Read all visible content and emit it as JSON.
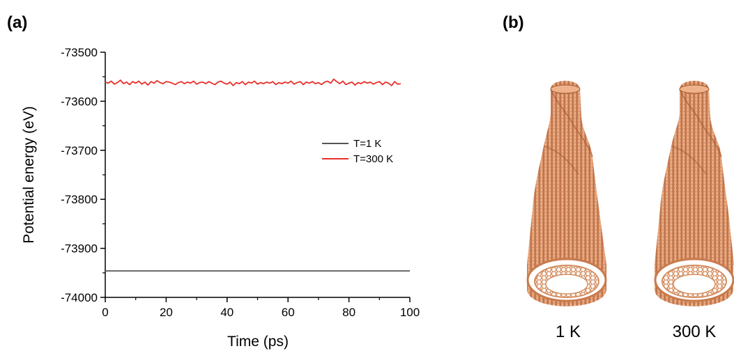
{
  "panels": {
    "a": "(a)",
    "b": "(b)"
  },
  "chart_data": {
    "type": "line",
    "xlabel": "Time (ps)",
    "ylabel": "Potential energy (eV)",
    "xlim": [
      0,
      100
    ],
    "ylim": [
      -74000,
      -73500
    ],
    "xticks": [
      0,
      20,
      40,
      60,
      80,
      100
    ],
    "yticks": [
      -74000,
      -73900,
      -73800,
      -73700,
      -73600,
      -73500
    ],
    "xtick_labels": [
      "0",
      "20",
      "40",
      "60",
      "80",
      "100"
    ],
    "ytick_labels": [
      "-74000",
      "-73900",
      "-73800",
      "-73700",
      "-73600",
      "-73500"
    ],
    "legend_position": "right",
    "grid": false,
    "series": [
      {
        "name": "T=1 K",
        "color": "#555555",
        "x": [
          0,
          100
        ],
        "y": [
          -73946,
          -73946
        ]
      },
      {
        "name": "T=300 K",
        "color": "#e8302a",
        "x": [
          0,
          1,
          2,
          3,
          4,
          5,
          6,
          7,
          8,
          9,
          10,
          11,
          12,
          13,
          14,
          15,
          16,
          17,
          18,
          19,
          20,
          21,
          22,
          23,
          24,
          25,
          26,
          27,
          28,
          29,
          30,
          31,
          32,
          33,
          34,
          35,
          36,
          37,
          38,
          39,
          40,
          41,
          42,
          43,
          44,
          45,
          46,
          47,
          48,
          49,
          50,
          51,
          52,
          53,
          54,
          55,
          56,
          57,
          58,
          59,
          60,
          61,
          62,
          63,
          64,
          65,
          66,
          67,
          68,
          69,
          70,
          71,
          72,
          73,
          74,
          75,
          76,
          77,
          78,
          79,
          80,
          81,
          82,
          83,
          84,
          85,
          86,
          87,
          88,
          89,
          90,
          91,
          92,
          93,
          94,
          95,
          96,
          97
        ],
        "y": [
          -73561,
          -73563,
          -73559,
          -73565,
          -73562,
          -73557,
          -73564,
          -73561,
          -73566,
          -73560,
          -73563,
          -73559,
          -73565,
          -73561,
          -73567,
          -73560,
          -73563,
          -73558,
          -73562,
          -73564,
          -73560,
          -73561,
          -73563,
          -73566,
          -73562,
          -73560,
          -73564,
          -73561,
          -73563,
          -73559,
          -73565,
          -73562,
          -73561,
          -73564,
          -73560,
          -73563,
          -73566,
          -73561,
          -73559,
          -73563,
          -73565,
          -73561,
          -73568,
          -73562,
          -73564,
          -73560,
          -73566,
          -73561,
          -73563,
          -73559,
          -73565,
          -73562,
          -73564,
          -73561,
          -73563,
          -73560,
          -73566,
          -73562,
          -73564,
          -73561,
          -73563,
          -73559,
          -73565,
          -73562,
          -73560,
          -73566,
          -73561,
          -73563,
          -73560,
          -73564,
          -73562,
          -73566,
          -73561,
          -73559,
          -73563,
          -73555,
          -73560,
          -73564,
          -73559,
          -73566,
          -73563,
          -73561,
          -73567,
          -73562,
          -73564,
          -73560,
          -73563,
          -73561,
          -73565,
          -73562,
          -73560,
          -73566,
          -73561,
          -73563,
          -73568,
          -73560,
          -73565,
          -73564
        ]
      }
    ]
  },
  "right_panel": {
    "tube_color": "#e8a57c",
    "captions": [
      "1 K",
      "300 K"
    ]
  }
}
